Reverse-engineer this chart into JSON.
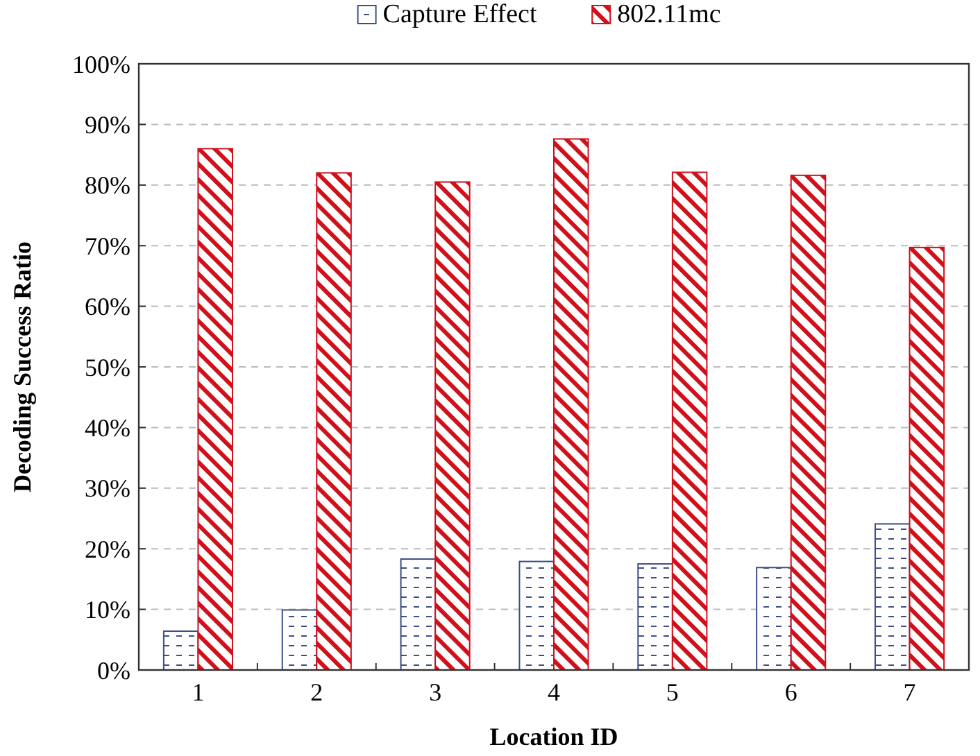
{
  "chart_data": {
    "type": "bar",
    "xlabel": "Location ID",
    "ylabel": "Decoding Success Ratio",
    "categories": [
      "1",
      "2",
      "3",
      "4",
      "5",
      "6",
      "7"
    ],
    "series": [
      {
        "name": "Capture Effect",
        "color": "#3c4f86",
        "values": [
          6.4,
          9.9,
          18.3,
          17.9,
          17.5,
          16.9,
          24.1
        ]
      },
      {
        "name": "802.11mc",
        "color": "#d0101a",
        "values": [
          86.0,
          82.0,
          80.5,
          87.6,
          82.1,
          81.6,
          69.7
        ]
      }
    ],
    "ylim": [
      0,
      100
    ],
    "yticks": [
      {
        "value": 0,
        "label": "0%"
      },
      {
        "value": 10,
        "label": "10%"
      },
      {
        "value": 20,
        "label": "20%"
      },
      {
        "value": 30,
        "label": "30%"
      },
      {
        "value": 40,
        "label": "40%"
      },
      {
        "value": 50,
        "label": "50%"
      },
      {
        "value": 60,
        "label": "60%"
      },
      {
        "value": 70,
        "label": "70%"
      },
      {
        "value": 80,
        "label": "80%"
      },
      {
        "value": 90,
        "label": "90%"
      },
      {
        "value": 100,
        "label": "100%"
      }
    ],
    "grid": "y",
    "legend": "top"
  }
}
